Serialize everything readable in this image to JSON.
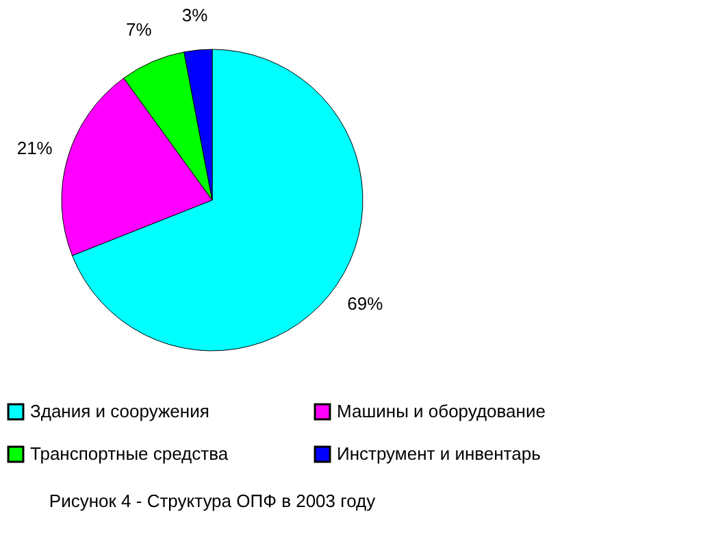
{
  "chart_data": {
    "type": "pie",
    "title": "Рисунок 4 - Структура ОПФ в 2003 году",
    "categories": [
      "Здания и сооружения",
      "Машины и оборудование",
      "Транспортные средства",
      "Инструмент и инвентарь"
    ],
    "values": [
      69,
      21,
      7,
      3
    ],
    "colors": [
      "#00ffff",
      "#ff00ff",
      "#00ff00",
      "#0000ff"
    ],
    "value_labels": [
      "69%",
      "21%",
      "7%",
      "3%"
    ],
    "legend": "bottom"
  }
}
